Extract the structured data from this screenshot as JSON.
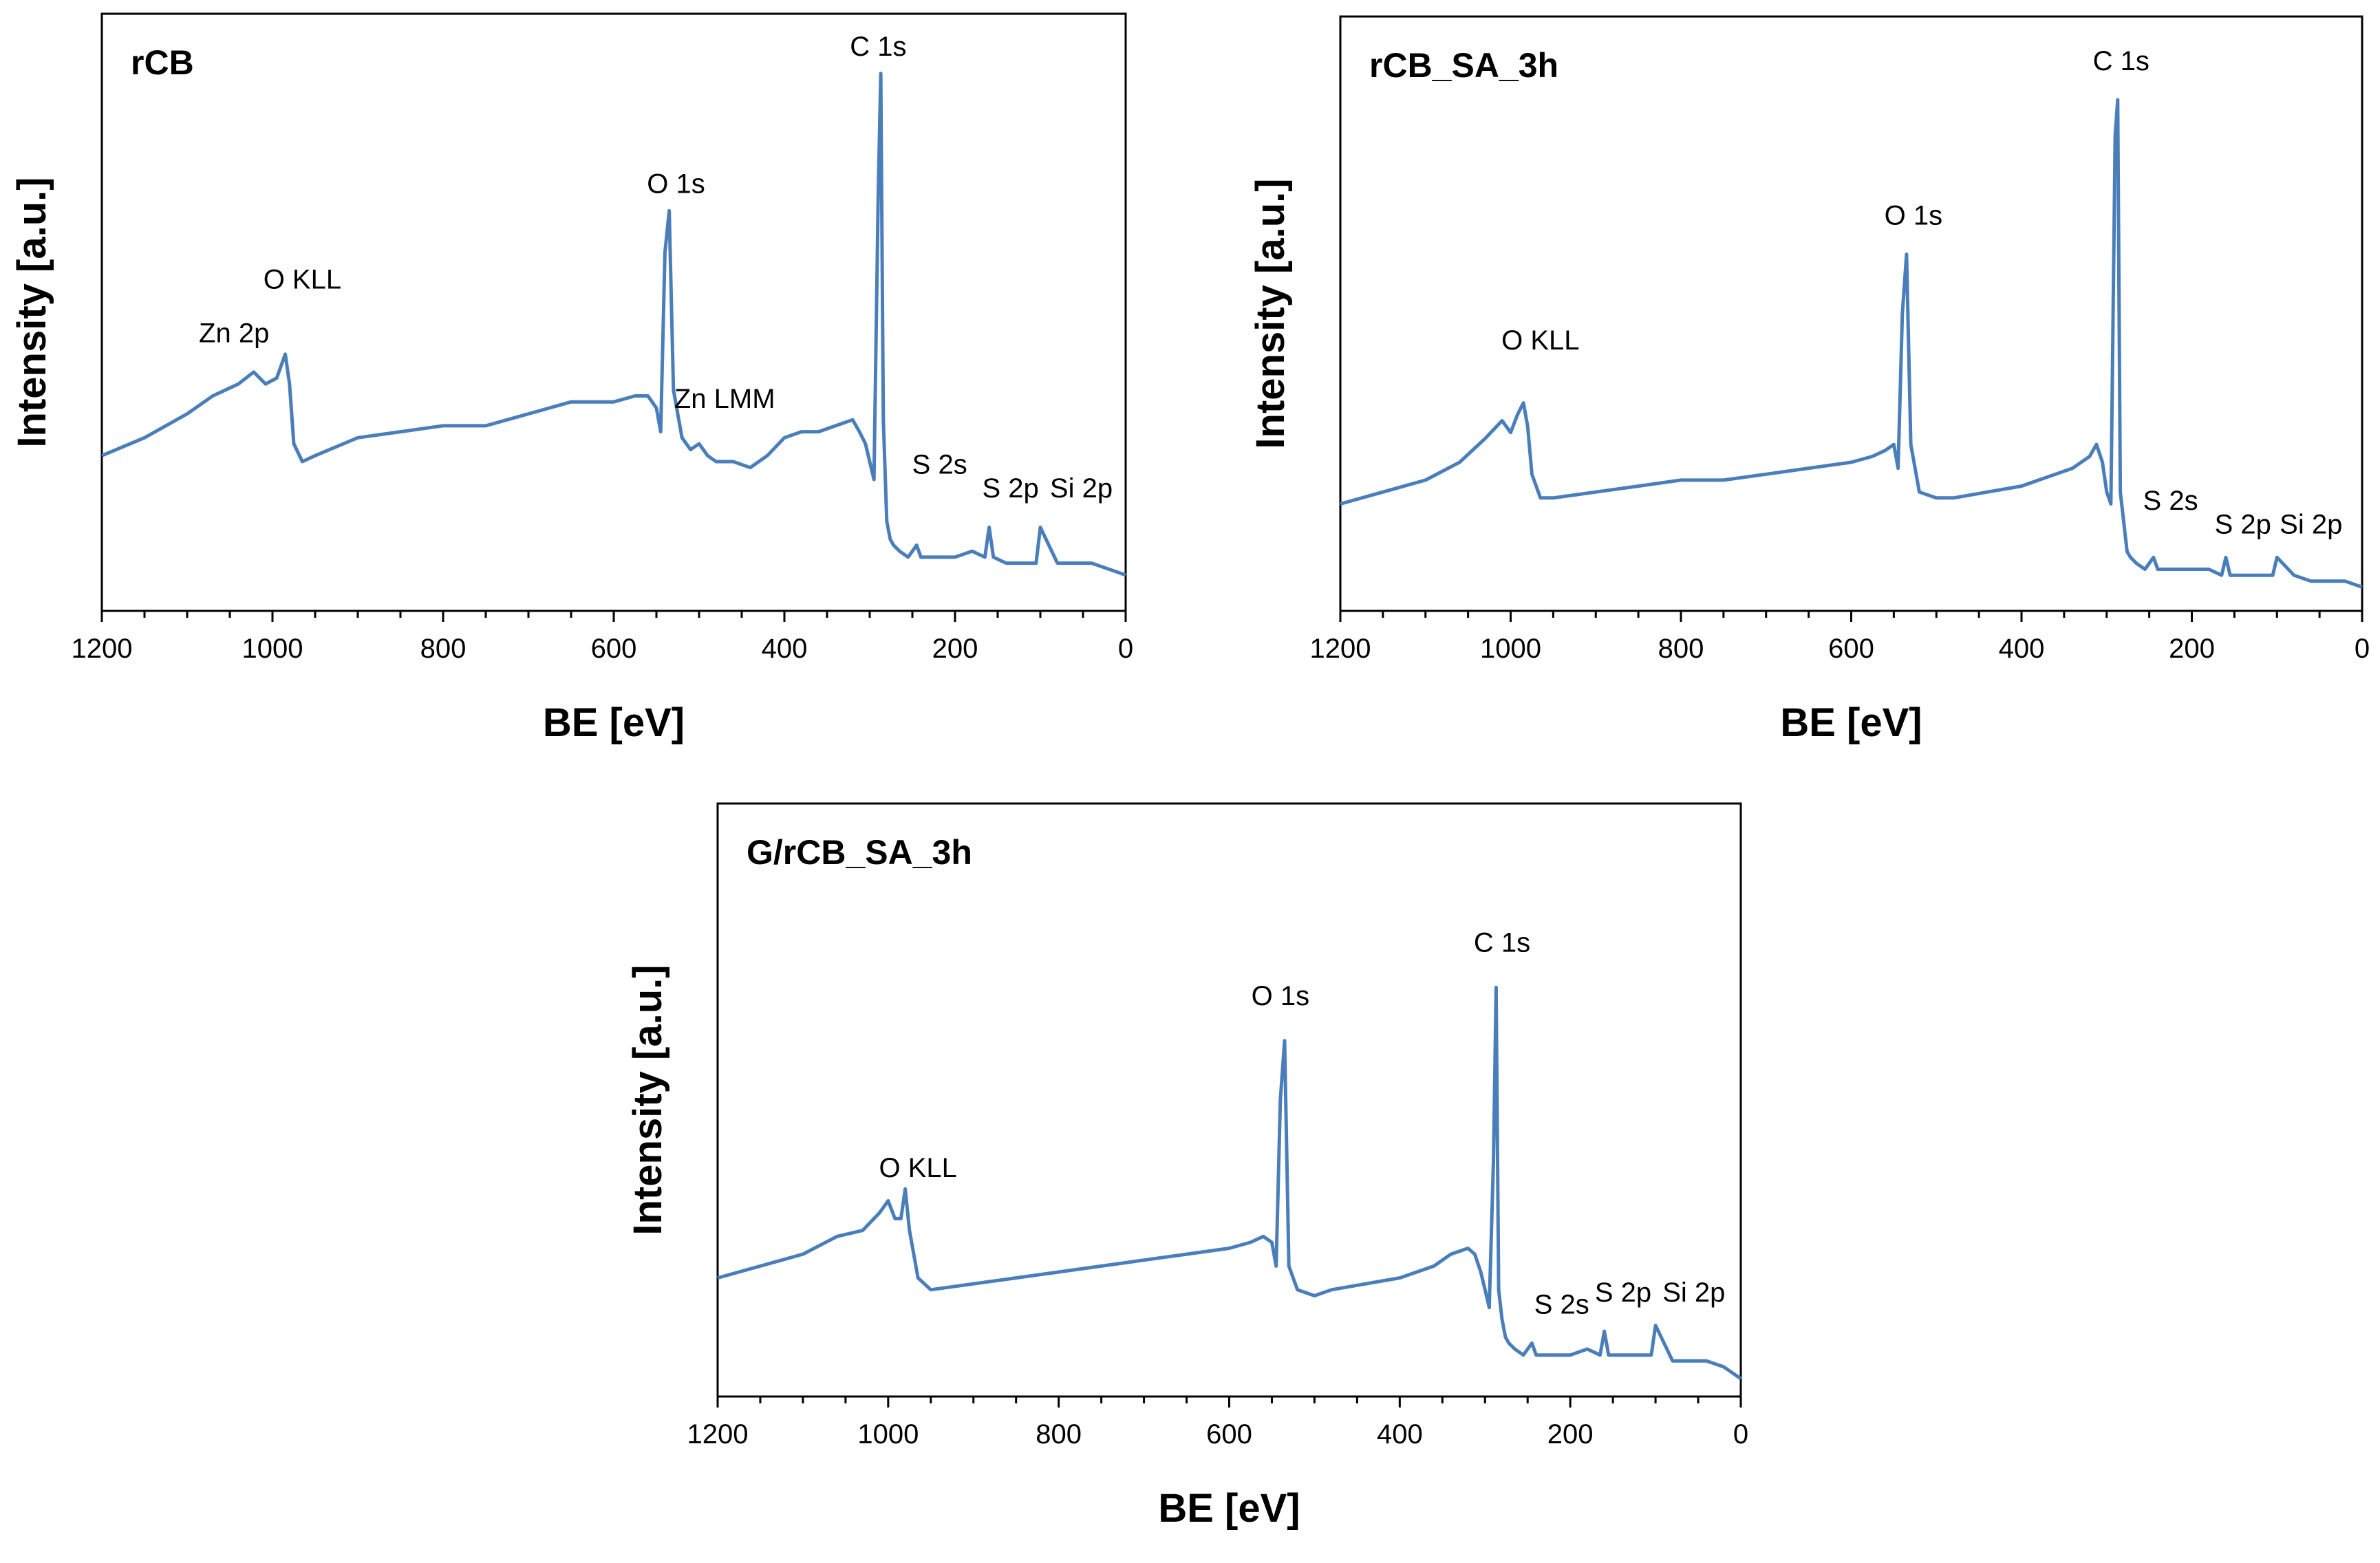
{
  "colors": {
    "series": "#4a7ebb",
    "axis": "#000000"
  },
  "chart_data": [
    {
      "type": "line",
      "title": "rCB",
      "xlabel": "BE [eV]",
      "ylabel": "Intensity [a.u.]",
      "xlim": [
        1200,
        0
      ],
      "ylim": [
        0,
        100
      ],
      "x_reversed": true,
      "grid": false,
      "xticks": [
        "1200",
        "1000",
        "800",
        "600",
        "400",
        "200",
        "0"
      ],
      "series": [
        {
          "name": "rCB",
          "x": [
            1200,
            1150,
            1100,
            1070,
            1040,
            1022,
            1008,
            995,
            985,
            980,
            975,
            965,
            950,
            900,
            850,
            800,
            750,
            700,
            650,
            600,
            575,
            560,
            550,
            545,
            540,
            535,
            530,
            520,
            510,
            500,
            490,
            480,
            460,
            440,
            420,
            400,
            380,
            360,
            340,
            320,
            312,
            305,
            300,
            295,
            290,
            287,
            284,
            280,
            276,
            272,
            265,
            255,
            245,
            240,
            235,
            220,
            200,
            180,
            165,
            160,
            155,
            140,
            120,
            105,
            100,
            80,
            60,
            40,
            20,
            0
          ],
          "y": [
            26,
            29,
            33,
            36,
            38,
            40,
            38,
            39,
            43,
            38,
            28,
            25,
            26,
            29,
            30,
            31,
            31,
            33,
            35,
            35,
            36,
            36,
            34,
            30,
            60,
            67,
            37,
            29,
            27,
            28,
            26,
            25,
            25,
            24,
            26,
            29,
            30,
            30,
            31,
            32,
            30,
            28,
            25,
            22,
            70,
            90,
            32,
            15,
            12,
            11,
            10,
            9,
            11,
            9,
            9,
            9,
            9,
            10,
            9,
            14,
            9,
            8,
            8,
            8,
            14,
            8,
            8,
            8,
            7,
            6
          ]
        }
      ],
      "annotations": [
        {
          "text": "C 1s",
          "x": 290,
          "y": 93
        },
        {
          "text": "O 1s",
          "x": 527,
          "y": 70
        },
        {
          "text": "O KLL",
          "x": 965,
          "y": 54
        },
        {
          "text": "Zn 2p",
          "x": 1045,
          "y": 45
        },
        {
          "text": "Zn LMM",
          "x": 470,
          "y": 34
        },
        {
          "text": "S 2s",
          "x": 218,
          "y": 23
        },
        {
          "text": "S 2p",
          "x": 135,
          "y": 19
        },
        {
          "text": "Si 2p",
          "x": 52,
          "y": 19
        }
      ]
    },
    {
      "type": "line",
      "title": "rCB_SA_3h",
      "xlabel": "BE [eV]",
      "ylabel": "Intensity [a.u.]",
      "xlim": [
        1200,
        0
      ],
      "ylim": [
        0,
        100
      ],
      "x_reversed": true,
      "grid": false,
      "xticks": [
        "1200",
        "1000",
        "800",
        "600",
        "400",
        "200",
        "0"
      ],
      "series": [
        {
          "name": "rCB_SA_3h",
          "x": [
            1200,
            1150,
            1100,
            1060,
            1030,
            1010,
            1000,
            992,
            985,
            980,
            975,
            965,
            950,
            900,
            850,
            800,
            750,
            700,
            650,
            600,
            575,
            560,
            550,
            545,
            540,
            535,
            530,
            520,
            500,
            480,
            440,
            400,
            380,
            360,
            340,
            320,
            312,
            305,
            300,
            295,
            290,
            287,
            284,
            280,
            276,
            272,
            265,
            255,
            245,
            240,
            235,
            220,
            200,
            180,
            165,
            160,
            155,
            140,
            120,
            105,
            100,
            80,
            60,
            40,
            20,
            0
          ],
          "y": [
            18,
            20,
            22,
            25,
            29,
            32,
            30,
            33,
            35,
            31,
            23,
            19,
            19,
            20,
            21,
            22,
            22,
            23,
            24,
            25,
            26,
            27,
            28,
            24,
            50,
            60,
            28,
            20,
            19,
            19,
            20,
            21,
            22,
            23,
            24,
            26,
            28,
            25,
            20,
            18,
            80,
            86,
            20,
            15,
            10,
            9,
            8,
            7,
            9,
            7,
            7,
            7,
            7,
            7,
            6,
            9,
            6,
            6,
            6,
            6,
            9,
            6,
            5,
            5,
            5,
            4
          ]
        }
      ],
      "annotations": [
        {
          "text": "C 1s",
          "x": 283,
          "y": 91
        },
        {
          "text": "O 1s",
          "x": 527,
          "y": 65
        },
        {
          "text": "O KLL",
          "x": 965,
          "y": 44
        },
        {
          "text": "S 2s",
          "x": 225,
          "y": 17
        },
        {
          "text": "S 2p",
          "x": 140,
          "y": 13
        },
        {
          "text": "Si 2p",
          "x": 60,
          "y": 13
        }
      ]
    },
    {
      "type": "line",
      "title": "G/rCB_SA_3h",
      "xlabel": "BE [eV]",
      "ylabel": "Intensity [a.u.]",
      "xlim": [
        1200,
        0
      ],
      "ylim": [
        0,
        100
      ],
      "x_reversed": true,
      "grid": false,
      "xticks": [
        "1200",
        "1000",
        "800",
        "600",
        "400",
        "200",
        "0"
      ],
      "series": [
        {
          "name": "G/rCB_SA_3h",
          "x": [
            1200,
            1150,
            1100,
            1060,
            1030,
            1010,
            1000,
            992,
            985,
            980,
            975,
            965,
            950,
            900,
            850,
            800,
            750,
            700,
            650,
            600,
            575,
            560,
            550,
            545,
            540,
            535,
            530,
            520,
            500,
            480,
            440,
            400,
            380,
            360,
            340,
            320,
            312,
            305,
            300,
            295,
            290,
            287,
            284,
            280,
            276,
            272,
            265,
            255,
            245,
            240,
            235,
            220,
            200,
            180,
            165,
            160,
            155,
            140,
            120,
            105,
            100,
            80,
            60,
            40,
            20,
            0
          ],
          "y": [
            20,
            22,
            24,
            27,
            28,
            31,
            33,
            30,
            30,
            35,
            28,
            20,
            18,
            19,
            20,
            21,
            22,
            23,
            24,
            25,
            26,
            27,
            26,
            22,
            50,
            60,
            22,
            18,
            17,
            18,
            19,
            20,
            21,
            22,
            24,
            25,
            24,
            21,
            18,
            15,
            40,
            69,
            18,
            13,
            10,
            9,
            8,
            7,
            9,
            7,
            7,
            7,
            7,
            8,
            7,
            11,
            7,
            7,
            7,
            7,
            12,
            6,
            6,
            6,
            5,
            3
          ]
        }
      ],
      "annotations": [
        {
          "text": "C 1s",
          "x": 280,
          "y": 75
        },
        {
          "text": "O 1s",
          "x": 540,
          "y": 66
        },
        {
          "text": "O KLL",
          "x": 965,
          "y": 37
        },
        {
          "text": "S 2s",
          "x": 210,
          "y": 14
        },
        {
          "text": "S 2p",
          "x": 138,
          "y": 16
        },
        {
          "text": "Si 2p",
          "x": 55,
          "y": 16
        }
      ]
    }
  ]
}
